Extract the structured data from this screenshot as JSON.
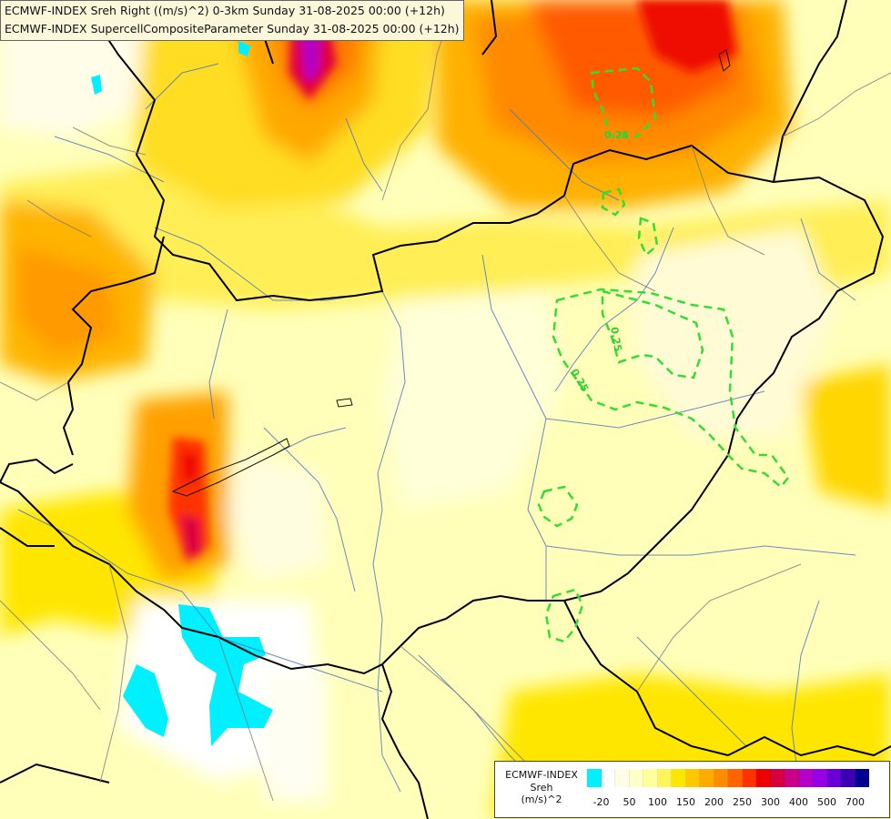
{
  "title": {
    "line1": "ECMWF-INDEX Sreh Right ((m/s)^2) 0-3km Sunday 31-08-2025 00:00 (+12h)",
    "line2": "ECMWF-INDEX SupercellCompositeParameter Sunday 31-08-2025 00:00 (+12h)"
  },
  "contour_labels": [
    "0.25",
    "0.25",
    "0.25"
  ],
  "legend": {
    "line1": "ECMWF-INDEX",
    "line2": "Sreh",
    "line3": "(m/s)^2",
    "colors": [
      "#00f0ff",
      "#ffffff",
      "#fffde6",
      "#ffffc8",
      "#ffff9c",
      "#fff55a",
      "#ffe600",
      "#ffc800",
      "#ffaa00",
      "#ff8c00",
      "#ff6400",
      "#ff3200",
      "#ee0000",
      "#d40040",
      "#cc0088",
      "#b400c8",
      "#9600e6",
      "#6a00d8",
      "#3c00b4",
      "#000090"
    ],
    "ticks": [
      "-20",
      "50",
      "100",
      "150",
      "200",
      "250",
      "300",
      "400",
      "500",
      "700"
    ]
  }
}
